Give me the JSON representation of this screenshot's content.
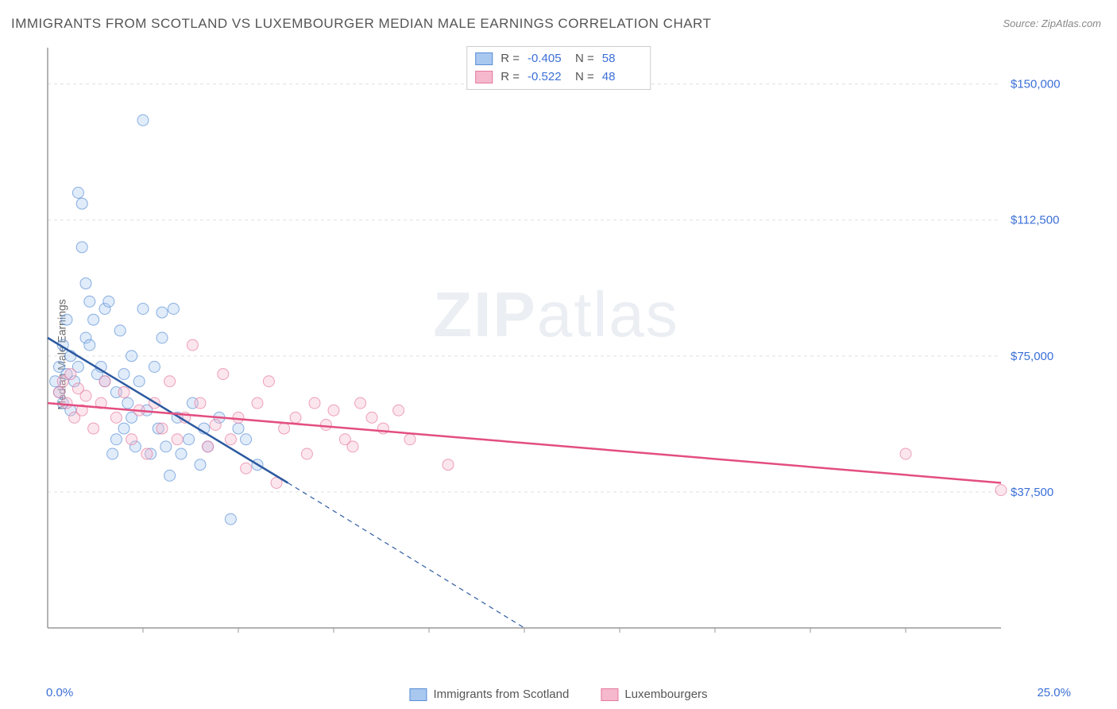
{
  "title": "IMMIGRANTS FROM SCOTLAND VS LUXEMBOURGER MEDIAN MALE EARNINGS CORRELATION CHART",
  "source": "Source: ZipAtlas.com",
  "y_axis_label": "Median Male Earnings",
  "watermark_bold": "ZIP",
  "watermark_light": "atlas",
  "chart": {
    "type": "scatter",
    "background_color": "#ffffff",
    "grid_color": "#e0e0e0",
    "grid_dash": "4 4",
    "axis_color": "#999999",
    "text_color": "#555555",
    "value_color": "#3b6fd6",
    "xlim": [
      0,
      25
    ],
    "ylim": [
      0,
      160000
    ],
    "x_tick_step_pct": 2.5,
    "y_ticks": [
      37500,
      75000,
      112500,
      150000
    ],
    "y_tick_labels": [
      "$37,500",
      "$75,000",
      "$112,500",
      "$150,000"
    ],
    "x_min_label": "0.0%",
    "x_max_label": "25.0%",
    "marker_radius": 7,
    "marker_opacity": 0.35,
    "marker_stroke_opacity": 0.7,
    "trend_line_width": 2.5,
    "trend_dash_width": 1.2,
    "series": [
      {
        "name": "Immigrants from Scotland",
        "color_fill": "#a8c8f0",
        "color_stroke": "#5a8fd6",
        "trend_color": "#2c5aa0",
        "R": "-0.405",
        "N": "58",
        "trend_start": [
          0,
          80000
        ],
        "trend_solid_end": [
          6.3,
          40000
        ],
        "trend_dash_end": [
          12.5,
          0
        ],
        "points": [
          [
            0.2,
            68000
          ],
          [
            0.3,
            72000
          ],
          [
            0.3,
            65000
          ],
          [
            0.4,
            62000
          ],
          [
            0.4,
            78000
          ],
          [
            0.5,
            70000
          ],
          [
            0.5,
            85000
          ],
          [
            0.6,
            75000
          ],
          [
            0.6,
            60000
          ],
          [
            0.7,
            68000
          ],
          [
            0.8,
            72000
          ],
          [
            0.8,
            120000
          ],
          [
            0.9,
            105000
          ],
          [
            0.9,
            117000
          ],
          [
            1.0,
            80000
          ],
          [
            1.0,
            95000
          ],
          [
            1.1,
            90000
          ],
          [
            1.1,
            78000
          ],
          [
            1.2,
            85000
          ],
          [
            1.3,
            70000
          ],
          [
            1.4,
            72000
          ],
          [
            1.5,
            88000
          ],
          [
            1.5,
            68000
          ],
          [
            1.6,
            90000
          ],
          [
            1.7,
            48000
          ],
          [
            1.8,
            65000
          ],
          [
            1.8,
            52000
          ],
          [
            1.9,
            82000
          ],
          [
            2.0,
            55000
          ],
          [
            2.0,
            70000
          ],
          [
            2.1,
            62000
          ],
          [
            2.2,
            58000
          ],
          [
            2.2,
            75000
          ],
          [
            2.3,
            50000
          ],
          [
            2.4,
            68000
          ],
          [
            2.5,
            88000
          ],
          [
            2.6,
            60000
          ],
          [
            2.7,
            48000
          ],
          [
            2.8,
            72000
          ],
          [
            2.9,
            55000
          ],
          [
            3.0,
            80000
          ],
          [
            3.0,
            87000
          ],
          [
            3.1,
            50000
          ],
          [
            3.2,
            42000
          ],
          [
            3.3,
            88000
          ],
          [
            3.4,
            58000
          ],
          [
            3.5,
            48000
          ],
          [
            3.7,
            52000
          ],
          [
            3.8,
            62000
          ],
          [
            4.0,
            45000
          ],
          [
            4.1,
            55000
          ],
          [
            4.2,
            50000
          ],
          [
            4.5,
            58000
          ],
          [
            4.8,
            30000
          ],
          [
            5.0,
            55000
          ],
          [
            5.2,
            52000
          ],
          [
            2.5,
            140000
          ],
          [
            5.5,
            45000
          ]
        ]
      },
      {
        "name": "Luxembourgers",
        "color_fill": "#f5b8cc",
        "color_stroke": "#e67aa0",
        "trend_color": "#e34e80",
        "R": "-0.522",
        "N": "48",
        "trend_start": [
          0,
          62000
        ],
        "trend_solid_end": [
          25,
          40000
        ],
        "trend_dash_end": null,
        "points": [
          [
            0.3,
            65000
          ],
          [
            0.4,
            68000
          ],
          [
            0.5,
            62000
          ],
          [
            0.6,
            70000
          ],
          [
            0.7,
            58000
          ],
          [
            0.8,
            66000
          ],
          [
            0.9,
            60000
          ],
          [
            1.0,
            64000
          ],
          [
            1.2,
            55000
          ],
          [
            1.4,
            62000
          ],
          [
            1.5,
            68000
          ],
          [
            1.8,
            58000
          ],
          [
            2.0,
            65000
          ],
          [
            2.2,
            52000
          ],
          [
            2.4,
            60000
          ],
          [
            2.6,
            48000
          ],
          [
            2.8,
            62000
          ],
          [
            3.0,
            55000
          ],
          [
            3.2,
            68000
          ],
          [
            3.4,
            52000
          ],
          [
            3.6,
            58000
          ],
          [
            3.8,
            78000
          ],
          [
            4.0,
            62000
          ],
          [
            4.2,
            50000
          ],
          [
            4.4,
            56000
          ],
          [
            4.6,
            70000
          ],
          [
            4.8,
            52000
          ],
          [
            5.0,
            58000
          ],
          [
            5.2,
            44000
          ],
          [
            5.5,
            62000
          ],
          [
            5.8,
            68000
          ],
          [
            6.0,
            40000
          ],
          [
            6.2,
            55000
          ],
          [
            6.5,
            58000
          ],
          [
            6.8,
            48000
          ],
          [
            7.0,
            62000
          ],
          [
            7.3,
            56000
          ],
          [
            7.5,
            60000
          ],
          [
            7.8,
            52000
          ],
          [
            8.0,
            50000
          ],
          [
            8.2,
            62000
          ],
          [
            8.5,
            58000
          ],
          [
            8.8,
            55000
          ],
          [
            9.2,
            60000
          ],
          [
            9.5,
            52000
          ],
          [
            10.5,
            45000
          ],
          [
            22.5,
            48000
          ],
          [
            25.0,
            38000
          ]
        ]
      }
    ]
  },
  "legend": {
    "series_a": "Immigrants from Scotland",
    "series_b": "Luxembourgers"
  }
}
